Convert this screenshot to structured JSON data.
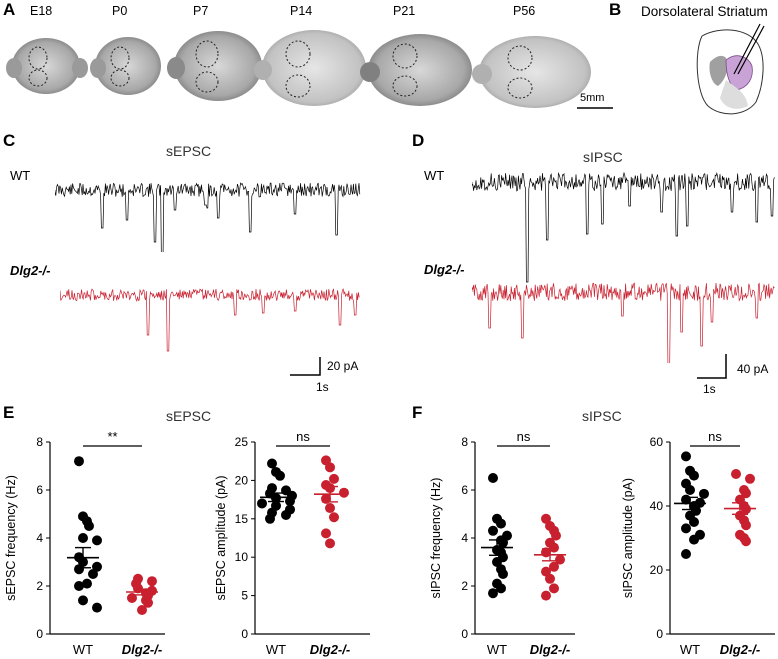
{
  "panels": {
    "a": "A",
    "b": "B",
    "c": "C",
    "d": "D",
    "e": "E",
    "f": "F"
  },
  "ages": [
    "E18",
    "P0",
    "P7",
    "P14",
    "P21",
    "P56"
  ],
  "scalebar_brain": "5mm",
  "striatum_title": "Dorsolateral Striatum",
  "traces": {
    "c_title": "sEPSC",
    "d_title": "sIPSC",
    "wt": "WT",
    "ko": "Dlg2-/-",
    "c_scale_y": "20 pA",
    "c_scale_x": "1s",
    "d_scale_y": "40 pA",
    "d_scale_x": "1s"
  },
  "section_titles": {
    "e": "sEPSC",
    "f": "sIPSC"
  },
  "colors": {
    "wt": "#000000",
    "ko": "#c8202f"
  },
  "chart_data": [
    {
      "type": "scatter",
      "id": "e1",
      "ylabel": "sEPSC frequency (Hz)",
      "ylim": [
        0,
        8
      ],
      "yticks": [
        0,
        2,
        4,
        6,
        8
      ],
      "categories": [
        "WT",
        "Dlg2-/-"
      ],
      "series": [
        {
          "name": "WT",
          "values": [
            7.2,
            4.9,
            4.7,
            4.5,
            4.0,
            3.9,
            3.2,
            3.0,
            2.8,
            2.7,
            2.5,
            2.1,
            2.0,
            1.4,
            1.1
          ],
          "mean": 3.18,
          "sem": 0.42
        },
        {
          "name": "Dlg2-/-",
          "values": [
            2.3,
            2.2,
            2.1,
            1.9,
            1.8,
            1.7,
            1.6,
            1.5,
            1.4,
            1.3,
            1.0
          ],
          "mean": 1.75,
          "sem": 0.12
        }
      ],
      "sig": "**"
    },
    {
      "type": "scatter",
      "id": "e2",
      "ylabel": "sEPSC amplitude (pA)",
      "ylim": [
        0,
        25
      ],
      "yticks": [
        0,
        5,
        10,
        15,
        20,
        25
      ],
      "categories": [
        "WT",
        "Dlg2-/-"
      ],
      "series": [
        {
          "name": "WT",
          "values": [
            22.2,
            21.1,
            20.6,
            19.0,
            18.7,
            18.3,
            18.0,
            17.7,
            17.3,
            17.0,
            16.7,
            16.2,
            15.8,
            15.5,
            15.0
          ],
          "mean": 17.8,
          "sem": 0.55
        },
        {
          "name": "Dlg2-/-",
          "values": [
            22.6,
            21.7,
            20.2,
            19.4,
            19.0,
            18.4,
            17.6,
            16.4,
            15.2,
            13.1,
            11.8
          ],
          "mean": 18.2,
          "sem": 1.0
        }
      ],
      "sig": "ns"
    },
    {
      "type": "scatter",
      "id": "f1",
      "ylabel": "sIPSC frequency (Hz)",
      "ylim": [
        0,
        8
      ],
      "yticks": [
        0,
        2,
        4,
        6,
        8
      ],
      "categories": [
        "WT",
        "Dlg2-/-"
      ],
      "series": [
        {
          "name": "WT",
          "values": [
            6.5,
            4.8,
            4.6,
            4.3,
            4.1,
            3.9,
            3.8,
            3.5,
            3.4,
            3.2,
            3.0,
            2.7,
            2.5,
            2.1,
            1.9,
            1.7
          ],
          "mean": 3.6,
          "sem": 0.32
        },
        {
          "name": "Dlg2-/-",
          "values": [
            4.8,
            4.5,
            4.3,
            4.1,
            3.8,
            3.6,
            3.4,
            3.1,
            2.8,
            2.6,
            2.3,
            1.9,
            1.6
          ],
          "mean": 3.3,
          "sem": 0.25
        }
      ],
      "sig": "ns"
    },
    {
      "type": "scatter",
      "id": "f2",
      "ylabel": "sIPSC amplitude (pA)",
      "ylim": [
        0,
        60
      ],
      "yticks": [
        0,
        20,
        40,
        60
      ],
      "categories": [
        "WT",
        "Dlg2-/-"
      ],
      "series": [
        {
          "name": "WT",
          "values": [
            55.5,
            51.0,
            49.5,
            47.0,
            45.0,
            43.8,
            42.0,
            41.0,
            40.0,
            38.5,
            37.0,
            35.0,
            33.0,
            31.0,
            29.5,
            25.0
          ],
          "mean": 40.8,
          "sem": 1.9
        },
        {
          "name": "Dlg2-/-",
          "values": [
            50.0,
            48.5,
            45.0,
            44.0,
            42.0,
            40.0,
            39.0,
            37.0,
            35.5,
            34.0,
            31.0,
            30.0,
            29.0
          ],
          "mean": 39.2,
          "sem": 1.8
        }
      ],
      "sig": "ns"
    }
  ]
}
